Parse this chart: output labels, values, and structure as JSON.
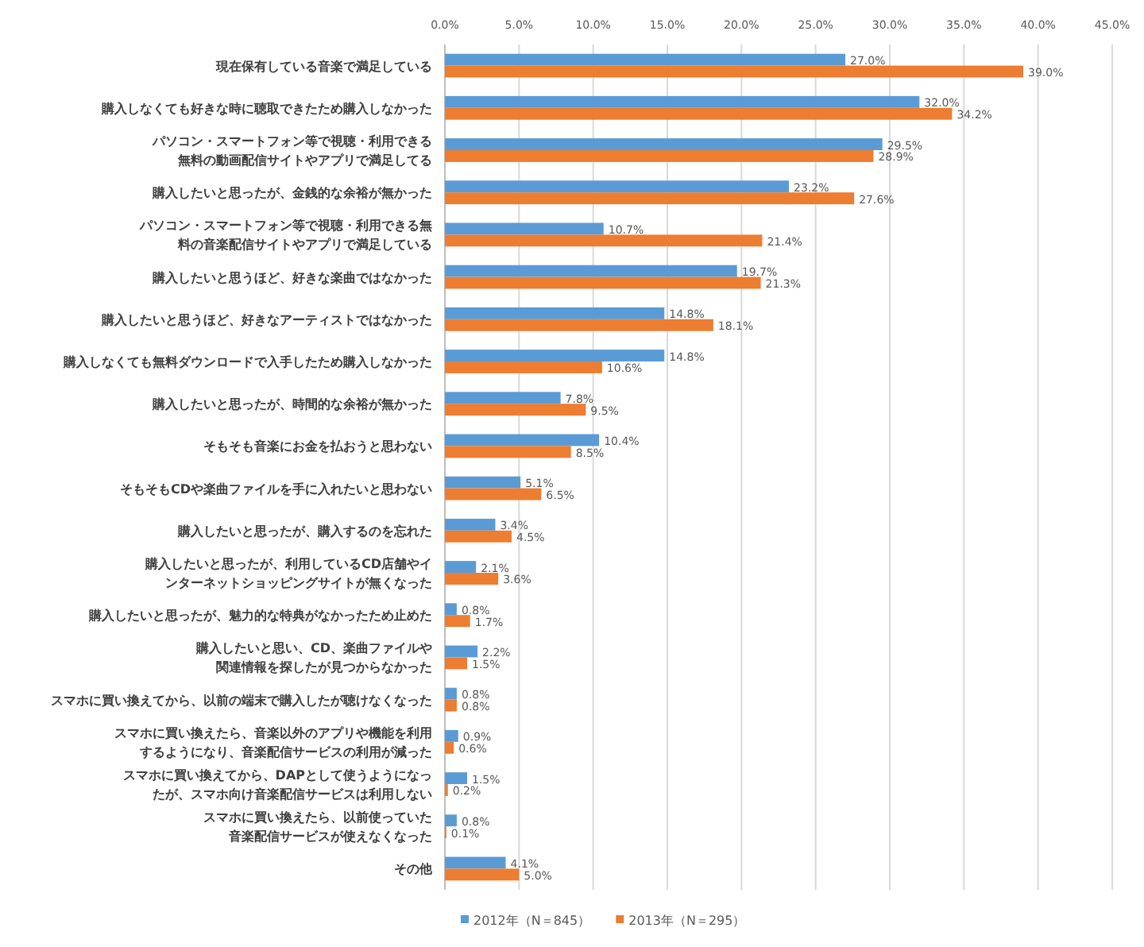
{
  "chart_data": {
    "type": "bar",
    "orientation": "horizontal",
    "grid": "x",
    "legend": "bottom",
    "xlim": [
      0,
      45
    ],
    "xticks": [
      {
        "value": 0,
        "label": "0.0%"
      },
      {
        "value": 5,
        "label": "5.0%"
      },
      {
        "value": 10,
        "label": "10.0%"
      },
      {
        "value": 15,
        "label": "15.0%"
      },
      {
        "value": 20,
        "label": "20.0%"
      },
      {
        "value": 25,
        "label": "25.0%"
      },
      {
        "value": 30,
        "label": "30.0%"
      },
      {
        "value": 35,
        "label": "35.0%"
      },
      {
        "value": 40,
        "label": "40.0%"
      },
      {
        "value": 45,
        "label": "45.0%"
      }
    ],
    "categories": [
      "現在保有している音楽で満足している",
      "購入しなくても好きな時に聴取できたため購入しなかった",
      "パソコン・スマートフォン等で視聴・利用できる無料の動画配信サイトやアプリで満足してる",
      "購入したいと思ったが、金銭的な余裕が無かった",
      "パソコン・スマートフォン等で視聴・利用できる無料の音楽配信サイトやアプリで満足している",
      "購入したいと思うほど、好きな楽曲ではなかった",
      "購入したいと思うほど、好きなアーティストではなかった",
      "購入しなくても無料ダウンロードで入手したため購入しなかった",
      "購入したいと思ったが、時間的な余裕が無かった",
      "そもそも音楽にお金を払おうと思わない",
      "そもそもCDや楽曲ファイルを手に入れたいと思わない",
      "購入したいと思ったが、購入するのを忘れた",
      "購入したいと思ったが、利用しているCD店舗やインターネットショッピングサイトが無くなった",
      "購入したいと思ったが、魅力的な特典がなかったため止めた",
      "購入したいと思い、CD、楽曲ファイルや関連情報を探したが見つからなかった",
      "スマホに買い換えてから、以前の端末で購入したが聴けなくなった",
      "スマホに買い換えたら、音楽以外のアプリや機能を利用するようになり、音楽配信サービスの利用が減った",
      "スマホに買い換えてから、DAPとして使うようになったが、スマホ向け音楽配信サービスは利用しない",
      "スマホに買い換えたら、以前使っていた音楽配信サービスが使えなくなった",
      "その他"
    ],
    "series": [
      {
        "name": "2012年（N＝845）",
        "color": "#5b9bd5",
        "values": [
          27.0,
          32.0,
          29.5,
          23.2,
          10.7,
          19.7,
          14.8,
          14.8,
          7.8,
          10.4,
          5.1,
          3.4,
          2.1,
          0.8,
          2.2,
          0.8,
          0.9,
          1.5,
          0.8,
          4.1
        ],
        "value_labels": [
          "27.0%",
          "32.0%",
          "29.5%",
          "23.2%",
          "10.7%",
          "19.7%",
          "14.8%",
          "14.8%",
          "7.8%",
          "10.4%",
          "5.1%",
          "3.4%",
          "2.1%",
          "0.8%",
          "2.2%",
          "0.8%",
          "0.9%",
          "1.5%",
          "0.8%",
          "4.1%"
        ]
      },
      {
        "name": "2013年（N＝295）",
        "color": "#ed7d31",
        "values": [
          39.0,
          34.2,
          28.9,
          27.6,
          21.4,
          21.3,
          18.1,
          10.6,
          9.5,
          8.5,
          6.5,
          4.5,
          3.6,
          1.7,
          1.5,
          0.8,
          0.6,
          0.2,
          0.1,
          5.0
        ],
        "value_labels": [
          "39.0%",
          "34.2%",
          "28.9%",
          "27.6%",
          "21.4%",
          "21.3%",
          "18.1%",
          "10.6%",
          "9.5%",
          "8.5%",
          "6.5%",
          "4.5%",
          "3.6%",
          "1.7%",
          "1.5%",
          "0.8%",
          "0.6%",
          "0.2%",
          "0.1%",
          "5.0%"
        ]
      }
    ]
  }
}
